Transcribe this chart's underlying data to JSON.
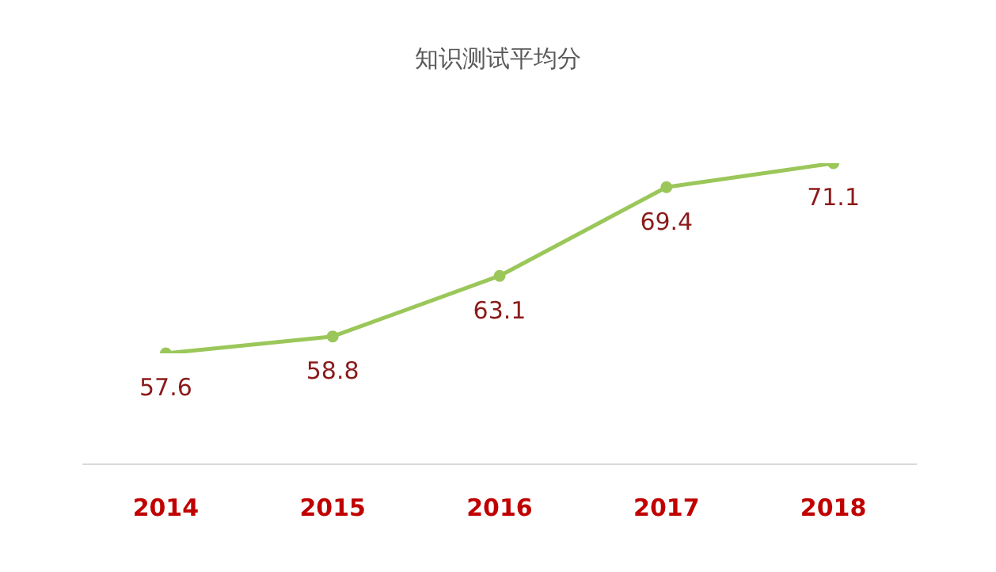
{
  "chart_data": {
    "type": "line",
    "title": "知识测试平均分",
    "categories": [
      "2014",
      "2015",
      "2016",
      "2017",
      "2018"
    ],
    "series": [
      {
        "color": "#9bc75a",
        "values": [
          57.6,
          58.8,
          63.1,
          69.4,
          71.1
        ]
      }
    ],
    "tick_labels": "x",
    "data_labels": true,
    "marker": "circle",
    "grid": false,
    "legend": false
  }
}
